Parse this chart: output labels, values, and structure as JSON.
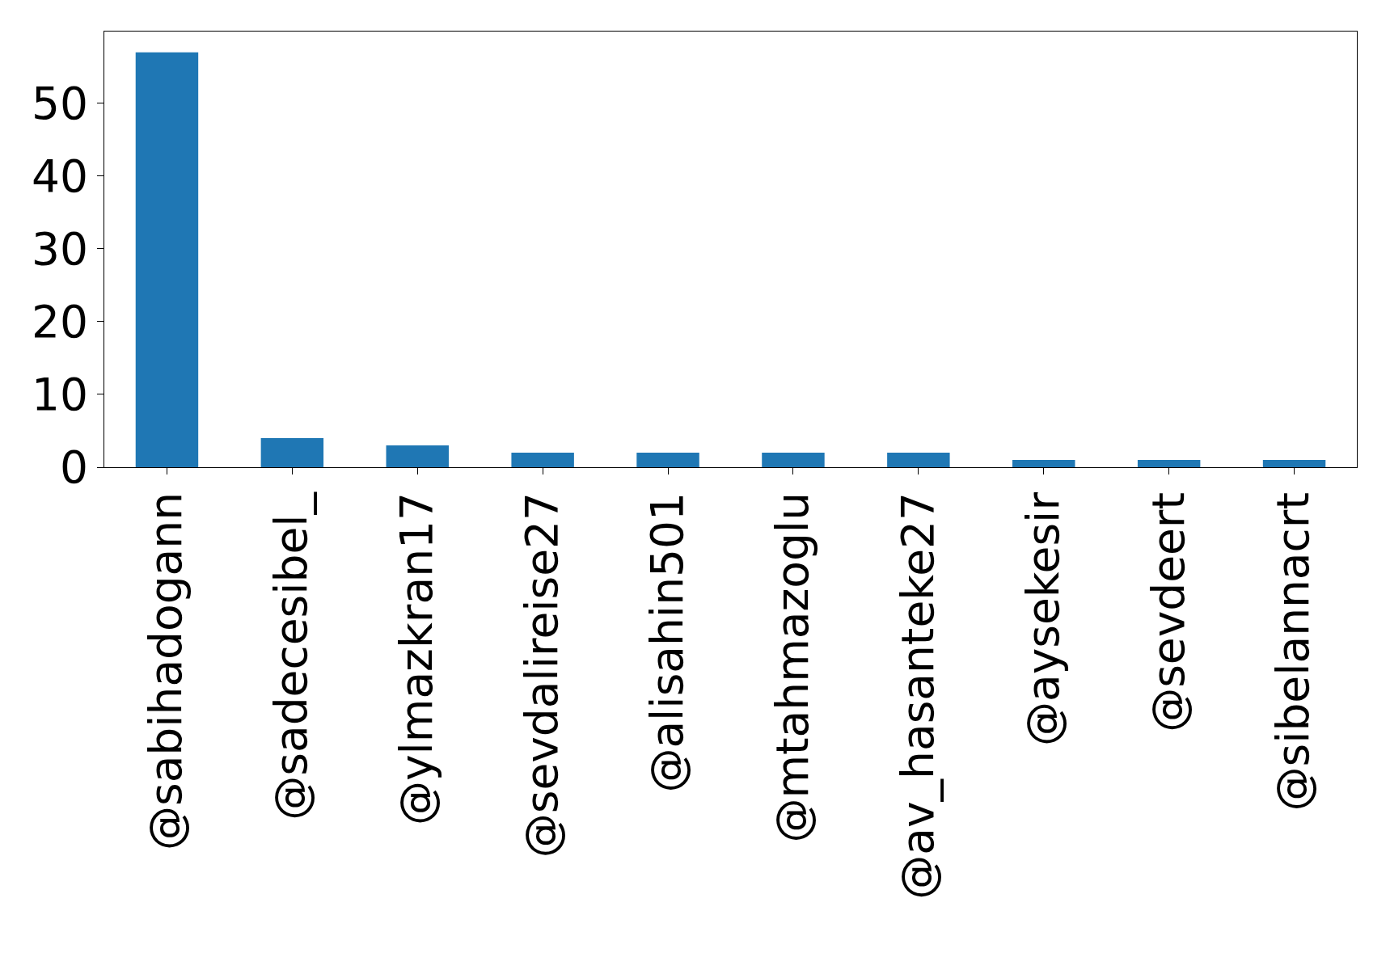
{
  "chart_data": {
    "type": "bar",
    "categories": [
      "@sabihadogann",
      "@sadecesibel_",
      "@ylmazkran17",
      "@sevdalireise27",
      "@alisahin501",
      "@mtahmazoglu",
      "@av_hasanteke27",
      "@aysekesir",
      "@sevdeert",
      "@sibelannacrt"
    ],
    "values": [
      57,
      4,
      3,
      2,
      2,
      2,
      2,
      1,
      1,
      1
    ],
    "color": "#1f77b4",
    "ylim": [
      0,
      59.85
    ],
    "yticks": [
      0,
      10,
      20,
      30,
      40,
      50
    ],
    "grid": false
  }
}
